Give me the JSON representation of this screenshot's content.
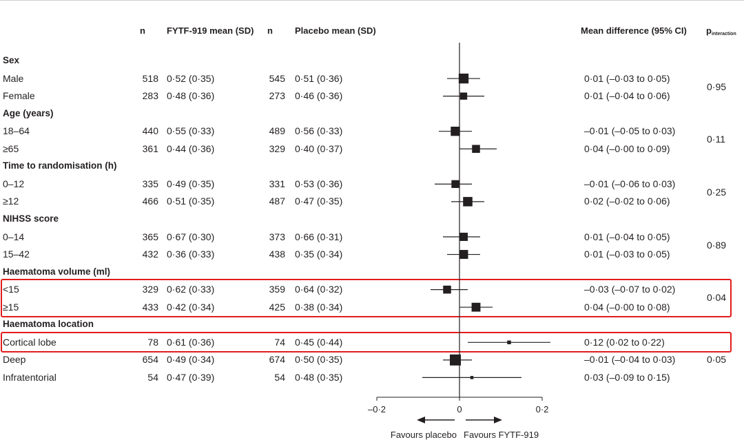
{
  "headers": {
    "n1": "n",
    "fytf_mean": "FYTF-919 mean (SD)",
    "n2": "n",
    "placebo_mean": "Placebo mean (SD)",
    "mean_diff": "Mean difference (95% CI)",
    "p_main": "p",
    "p_sub": "interaction"
  },
  "rows": [
    {
      "type": "group",
      "label": "Sex"
    },
    {
      "type": "data",
      "label": "Male",
      "n1": "518",
      "m1": "0·52 (0·35)",
      "n2": "545",
      "m2": "0·51 (0·36)",
      "md": "0·01 (–0·03 to 0·05)"
    },
    {
      "type": "data",
      "label": "Female",
      "n1": "283",
      "m1": "0·48 (0·36)",
      "n2": "273",
      "m2": "0·46 (0·36)",
      "md": "0·01 (–0·04 to 0·06)"
    },
    {
      "type": "group",
      "label": "Age (years)"
    },
    {
      "type": "data",
      "label": "18–64",
      "n1": "440",
      "m1": "0·55 (0·33)",
      "n2": "489",
      "m2": "0·56 (0·33)",
      "md": "–0·01 (–0·05 to 0·03)"
    },
    {
      "type": "data",
      "label": "≥65",
      "n1": "361",
      "m1": "0·44 (0·36)",
      "n2": "329",
      "m2": "0·40 (0·37)",
      "md": "0·04 (–0·00 to 0·09)"
    },
    {
      "type": "group",
      "label": "Time to randomisation (h)"
    },
    {
      "type": "data",
      "label": "0–12",
      "n1": "335",
      "m1": "0·49 (0·35)",
      "n2": "331",
      "m2": "0·53 (0·36)",
      "md": "–0·01 (–0·06 to 0·03)"
    },
    {
      "type": "data",
      "label": "≥12",
      "n1": "466",
      "m1": "0·51 (0·35)",
      "n2": "487",
      "m2": "0·47 (0·35)",
      "md": "0·02 (–0·02 to 0·06)"
    },
    {
      "type": "group",
      "label": "NIHSS score"
    },
    {
      "type": "data",
      "label": "0–14",
      "n1": "365",
      "m1": "0·67 (0·30)",
      "n2": "373",
      "m2": "0·66 (0·31)",
      "md": "0·01 (–0·04 to 0·05)"
    },
    {
      "type": "data",
      "label": "15–42",
      "n1": "432",
      "m1": "0·36 (0·33)",
      "n2": "438",
      "m2": "0·35 (0·34)",
      "md": "0·01 (–0·03 to 0·05)"
    },
    {
      "type": "group",
      "label": "Haematoma volume (ml)"
    },
    {
      "type": "data",
      "label": "<15",
      "n1": "329",
      "m1": "0·62 (0·33)",
      "n2": "359",
      "m2": "0·64 (0·32)",
      "md": "–0·03 (–0·07 to 0·02)"
    },
    {
      "type": "data",
      "label": "≥15",
      "n1": "433",
      "m1": "0·42 (0·34)",
      "n2": "425",
      "m2": "0·38 (0·34)",
      "md": "0·04 (–0·00 to 0·08)"
    },
    {
      "type": "group",
      "label": "Haematoma location"
    },
    {
      "type": "data",
      "label": "Cortical lobe",
      "n1": "78",
      "m1": "0·61 (0·36)",
      "n2": "74",
      "m2": "0·45 (0·44)",
      "md": "0·12 (0·02 to 0·22)"
    },
    {
      "type": "data",
      "label": "Deep",
      "n1": "654",
      "m1": "0·49 (0·34)",
      "n2": "674",
      "m2": "0·50 (0·35)",
      "md": "–0·01 (–0·04 to 0·03)"
    },
    {
      "type": "data",
      "label": "Infratentorial",
      "n1": "54",
      "m1": "0·47 (0·39)",
      "n2": "54",
      "m2": "0·48 (0·35)",
      "md": "0·03 (–0·09 to 0·15)"
    }
  ],
  "p_values": [
    {
      "rows": [
        1,
        2
      ],
      "value": "0·95"
    },
    {
      "rows": [
        4,
        5
      ],
      "value": "0·11"
    },
    {
      "rows": [
        7,
        8
      ],
      "value": "0·25"
    },
    {
      "rows": [
        10,
        11
      ],
      "value": "0·89"
    },
    {
      "rows": [
        13,
        14
      ],
      "value": "0·04"
    },
    {
      "rows": [
        16,
        17,
        18
      ],
      "value": "0·05"
    }
  ],
  "highlights": [
    [
      13,
      14
    ],
    [
      16
    ]
  ],
  "colors": {
    "highlight": "#e21b1b",
    "ink": "#231f20"
  },
  "chart_data": {
    "type": "forest",
    "xlim": [
      -0.2,
      0.2
    ],
    "reference_line": 0,
    "ticks": [
      -0.2,
      0,
      0.2
    ],
    "tick_labels": [
      "–0·2",
      "0",
      "0·2"
    ],
    "favours_left": "Favours placebo",
    "favours_right": "Favours FYTF-919",
    "estimates": [
      {
        "label": "Male",
        "mean": 0.01,
        "lo": -0.03,
        "hi": 0.05,
        "n_total": 1063
      },
      {
        "label": "Female",
        "mean": 0.01,
        "lo": -0.04,
        "hi": 0.06,
        "n_total": 556
      },
      {
        "label": "18–64",
        "mean": -0.01,
        "lo": -0.05,
        "hi": 0.03,
        "n_total": 929
      },
      {
        "label": "≥65",
        "mean": 0.04,
        "lo": -0.0,
        "hi": 0.09,
        "n_total": 690
      },
      {
        "label": "0–12",
        "mean": -0.01,
        "lo": -0.06,
        "hi": 0.03,
        "n_total": 666
      },
      {
        "label": "≥12",
        "mean": 0.02,
        "lo": -0.02,
        "hi": 0.06,
        "n_total": 953
      },
      {
        "label": "0–14",
        "mean": 0.01,
        "lo": -0.04,
        "hi": 0.05,
        "n_total": 738
      },
      {
        "label": "15–42",
        "mean": 0.01,
        "lo": -0.03,
        "hi": 0.05,
        "n_total": 870
      },
      {
        "label": "<15",
        "mean": -0.03,
        "lo": -0.07,
        "hi": 0.02,
        "n_total": 688
      },
      {
        "label": "≥15",
        "mean": 0.04,
        "lo": -0.0,
        "hi": 0.08,
        "n_total": 858
      },
      {
        "label": "Cortical lobe",
        "mean": 0.12,
        "lo": 0.02,
        "hi": 0.22,
        "n_total": 152
      },
      {
        "label": "Deep",
        "mean": -0.01,
        "lo": -0.04,
        "hi": 0.03,
        "n_total": 1328
      },
      {
        "label": "Infratentorial",
        "mean": 0.03,
        "lo": -0.09,
        "hi": 0.15,
        "n_total": 108
      }
    ]
  }
}
